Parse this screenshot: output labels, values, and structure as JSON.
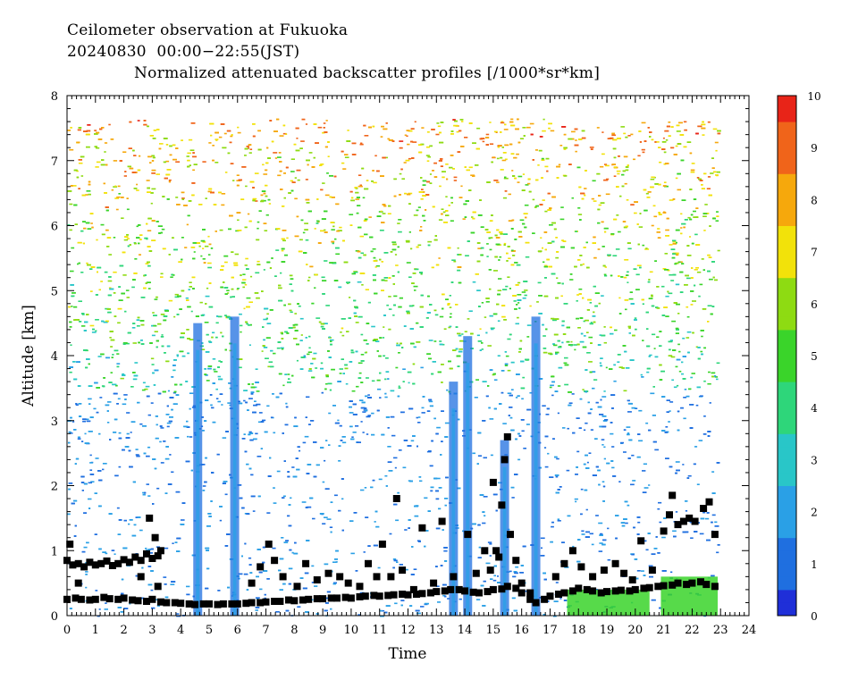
{
  "header": {
    "line1": "Ceilometer observation at Fukuoka",
    "line2": "20240830  00:00−22:55(JST)",
    "line3": "Normalized attenuated backscatter profiles [/1000*sr*km]"
  },
  "chart_data": {
    "type": "heatmap",
    "xlabel": "Time",
    "ylabel": "Altitude [km]",
    "xlim": [
      0,
      24
    ],
    "ylim": [
      0,
      8
    ],
    "x_ticks": [
      0,
      1,
      2,
      3,
      4,
      5,
      6,
      7,
      8,
      9,
      10,
      11,
      12,
      13,
      14,
      15,
      16,
      17,
      18,
      19,
      20,
      21,
      22,
      23,
      24
    ],
    "y_ticks": [
      0,
      1,
      2,
      3,
      4,
      5,
      6,
      7,
      8
    ],
    "data_time_range": [
      0,
      22.9
    ],
    "data_top_altitude": 7.65,
    "colorbar": {
      "range": [
        0,
        10
      ],
      "ticks": [
        0,
        1,
        2,
        3,
        4,
        5,
        6,
        7,
        8,
        9,
        10
      ],
      "colors": [
        "#1f2fd8",
        "#1f6fe0",
        "#2aa0e6",
        "#29c6c8",
        "#2ed67a",
        "#3ad42a",
        "#8edb12",
        "#f2e20a",
        "#f6a80c",
        "#f0641a",
        "#e82418"
      ]
    },
    "vertical_plumes": [
      {
        "time": 4.6,
        "top": 4.5
      },
      {
        "time": 5.9,
        "top": 4.6
      },
      {
        "time": 13.6,
        "top": 3.6
      },
      {
        "time": 14.1,
        "top": 4.3
      },
      {
        "time": 15.4,
        "top": 2.7
      },
      {
        "time": 16.5,
        "top": 4.6
      }
    ],
    "surface_layer": [
      {
        "start": 17.6,
        "end": 20.5,
        "top": 0.4,
        "level": 4.5
      },
      {
        "start": 20.9,
        "end": 22.9,
        "top": 0.6,
        "level": 4.5
      }
    ],
    "series": [
      {
        "marker": "square",
        "x": [
          0.0,
          0.3,
          0.5,
          0.8,
          1.0,
          1.3,
          1.5,
          1.8,
          2.0,
          2.3,
          2.5,
          2.8,
          3.0,
          3.3,
          3.5,
          3.8,
          4.0,
          4.3,
          4.5,
          4.8,
          5.0,
          5.3,
          5.5,
          5.8,
          6.0,
          6.3,
          6.5,
          6.8,
          7.0,
          7.3,
          7.5,
          7.8,
          8.0,
          8.3,
          8.5,
          8.8,
          9.0,
          9.3,
          9.5,
          9.8,
          10.0,
          10.3,
          10.5,
          10.8,
          11.0,
          11.3,
          11.5,
          11.8,
          12.0,
          12.3,
          12.5,
          12.8,
          13.0,
          13.3,
          13.5,
          13.8,
          14.0,
          14.3,
          14.5,
          14.8,
          15.0,
          15.3,
          15.5,
          15.8,
          16.0,
          16.3,
          16.5,
          16.8,
          17.0,
          17.3,
          17.5,
          17.8,
          18.0,
          18.3,
          18.5,
          18.8,
          19.0,
          19.3,
          19.5,
          19.8,
          20.0,
          20.3,
          20.5,
          20.8,
          21.0,
          21.3,
          21.5,
          21.8,
          22.0,
          22.3,
          22.5,
          22.8
        ],
        "values": [
          0.25,
          0.27,
          0.25,
          0.24,
          0.25,
          0.28,
          0.26,
          0.25,
          0.27,
          0.24,
          0.23,
          0.22,
          0.25,
          0.21,
          0.2,
          0.2,
          0.19,
          0.18,
          0.17,
          0.18,
          0.18,
          0.17,
          0.18,
          0.18,
          0.18,
          0.19,
          0.2,
          0.2,
          0.21,
          0.22,
          0.22,
          0.24,
          0.23,
          0.24,
          0.25,
          0.26,
          0.26,
          0.27,
          0.27,
          0.28,
          0.27,
          0.29,
          0.3,
          0.31,
          0.3,
          0.31,
          0.32,
          0.33,
          0.32,
          0.33,
          0.34,
          0.35,
          0.37,
          0.38,
          0.4,
          0.4,
          0.38,
          0.36,
          0.35,
          0.37,
          0.4,
          0.41,
          0.45,
          0.42,
          0.35,
          0.25,
          0.2,
          0.25,
          0.3,
          0.33,
          0.35,
          0.38,
          0.42,
          0.4,
          0.38,
          0.35,
          0.37,
          0.38,
          0.39,
          0.38,
          0.4,
          0.42,
          0.43,
          0.45,
          0.46,
          0.47,
          0.5,
          0.48,
          0.5,
          0.52,
          0.48,
          0.45
        ]
      },
      {
        "marker": "square",
        "x": [
          0.0,
          0.2,
          0.4,
          0.6,
          0.8,
          1.0,
          1.2,
          1.4,
          1.6,
          1.8,
          2.0,
          2.2,
          2.4,
          2.6,
          2.8,
          3.0,
          3.2
        ],
        "values": [
          0.85,
          0.78,
          0.8,
          0.75,
          0.82,
          0.78,
          0.8,
          0.84,
          0.77,
          0.8,
          0.86,
          0.82,
          0.9,
          0.85,
          0.95,
          0.88,
          0.92
        ]
      },
      {
        "marker": "square",
        "x": [
          0.1,
          0.4,
          2.6,
          2.9,
          3.1,
          3.2,
          3.3,
          6.5,
          6.8,
          7.1,
          7.3,
          7.6,
          8.1,
          8.4,
          8.8,
          9.2,
          9.6,
          9.9,
          10.3,
          10.6,
          10.9,
          11.1,
          11.4,
          11.6,
          11.8,
          12.2,
          12.5,
          12.9,
          13.2,
          13.6,
          14.1,
          14.4,
          14.7,
          14.9,
          15.0,
          15.1,
          15.2,
          15.3,
          15.4,
          15.5,
          15.6,
          15.8,
          16.0,
          16.3,
          17.2,
          17.5,
          17.8,
          18.1,
          18.5,
          18.9,
          19.3,
          19.6,
          19.9,
          20.2,
          20.6,
          21.0,
          21.2,
          21.3,
          21.5,
          21.7,
          21.9,
          22.1,
          22.4,
          22.6,
          22.8
        ],
        "values": [
          1.1,
          0.5,
          0.6,
          1.5,
          1.2,
          0.45,
          1.0,
          0.5,
          0.75,
          1.1,
          0.85,
          0.6,
          0.45,
          0.8,
          0.55,
          0.65,
          0.6,
          0.5,
          0.45,
          0.8,
          0.6,
          1.1,
          0.6,
          1.8,
          0.7,
          0.4,
          1.35,
          0.5,
          1.45,
          0.6,
          1.25,
          0.65,
          1.0,
          0.7,
          2.05,
          1.0,
          0.9,
          1.7,
          2.4,
          2.75,
          1.25,
          0.85,
          0.5,
          0.35,
          0.6,
          0.8,
          1.0,
          0.75,
          0.6,
          0.7,
          0.8,
          0.65,
          0.55,
          1.15,
          0.7,
          1.3,
          1.55,
          1.85,
          1.4,
          1.45,
          1.5,
          1.45,
          1.65,
          1.75,
          1.25
        ]
      }
    ]
  }
}
